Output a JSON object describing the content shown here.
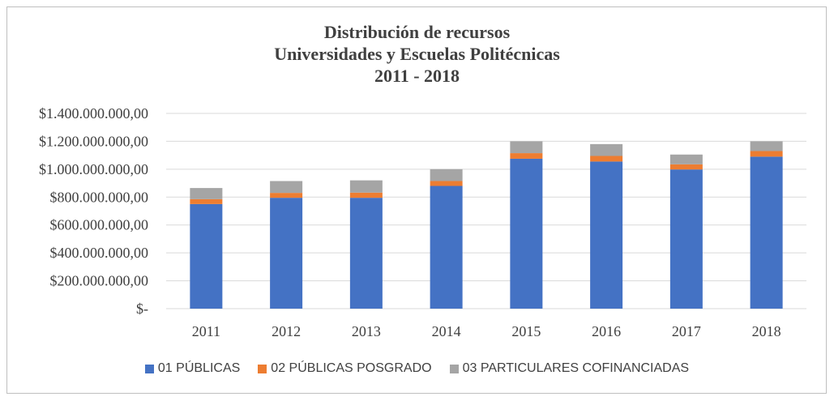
{
  "chart_data": {
    "type": "bar",
    "stacked": true,
    "title_lines": [
      "Distribución de recursos",
      "Universidades y Escuelas Politécnicas",
      "2011 - 2018"
    ],
    "categories": [
      "2011",
      "2012",
      "2013",
      "2014",
      "2015",
      "2016",
      "2017",
      "2018"
    ],
    "series": [
      {
        "name": "01 PÚBLICAS",
        "color": "#4472C4",
        "values": [
          750000000,
          795000000,
          795000000,
          880000000,
          1075000000,
          1055000000,
          998000000,
          1090000000
        ]
      },
      {
        "name": "02 PÚBLICAS POSGRADO",
        "color": "#ED7D31",
        "values": [
          35000000,
          35000000,
          37000000,
          35000000,
          40000000,
          40000000,
          37000000,
          40000000
        ]
      },
      {
        "name": "03 PARTICULARES COFINANCIADAS",
        "color": "#A5A5A5",
        "values": [
          80000000,
          85000000,
          88000000,
          85000000,
          85000000,
          85000000,
          70000000,
          70000000
        ]
      }
    ],
    "y_ticks": [
      "$-",
      "$200.000.000,00",
      "$400.000.000,00",
      "$600.000.000,00",
      "$800.000.000,00",
      "$1.000.000.000,00",
      "$1.200.000.000,00",
      "$1.400.000.000,00"
    ],
    "ylim": [
      0,
      1400000000
    ],
    "xlabel": "",
    "ylabel": "",
    "grid": true,
    "legend_position": "bottom"
  }
}
